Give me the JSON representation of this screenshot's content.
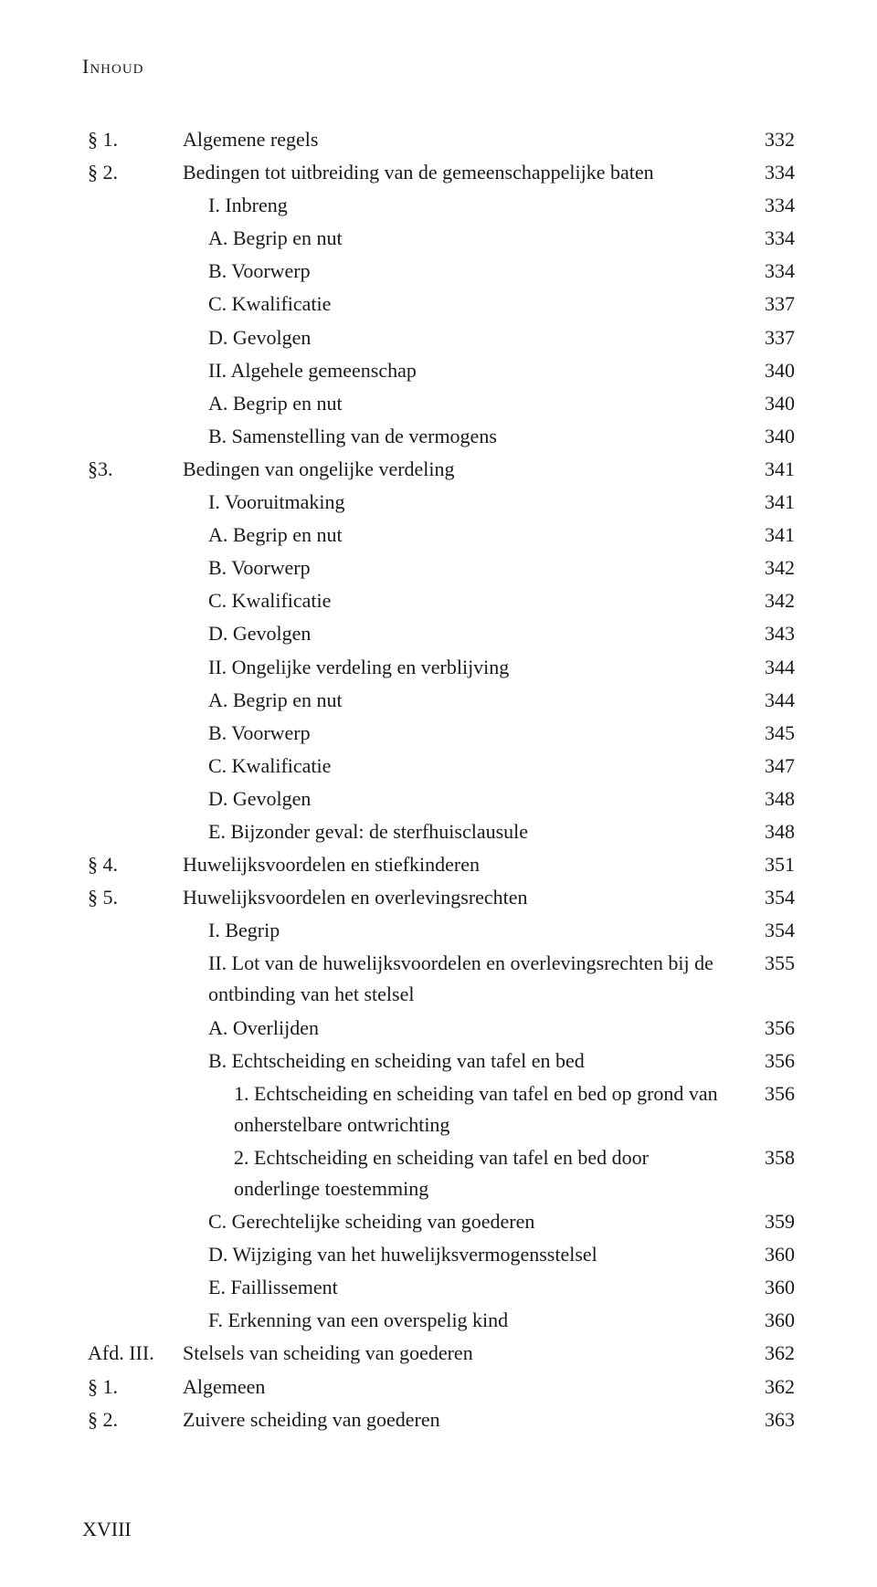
{
  "page_header": "Inhoud",
  "page_number": "XVIII",
  "fonts": {
    "body_family": "Garamond, Times New Roman, serif",
    "body_size_pt": 12,
    "header_smallcaps": true
  },
  "colors": {
    "text": "#1a1a1a",
    "background": "#ffffff"
  },
  "entries": [
    {
      "marker": "§ 1.",
      "indent": 0,
      "text": "Algemene regels",
      "page": "332"
    },
    {
      "marker": "§ 2.",
      "indent": 0,
      "text": "Bedingen tot uitbreiding van de gemeenschappelijke baten",
      "page": "334"
    },
    {
      "marker": "",
      "indent": 1,
      "text": "I.   Inbreng",
      "page": "334"
    },
    {
      "marker": "",
      "indent": 1,
      "text": "A.  Begrip en nut",
      "page": "334"
    },
    {
      "marker": "",
      "indent": 1,
      "text": "B.  Voorwerp",
      "page": "334"
    },
    {
      "marker": "",
      "indent": 1,
      "text": "C.  Kwalificatie",
      "page": "337"
    },
    {
      "marker": "",
      "indent": 1,
      "text": "D.  Gevolgen",
      "page": "337"
    },
    {
      "marker": "",
      "indent": 1,
      "text": "II.  Algehele gemeenschap",
      "page": "340"
    },
    {
      "marker": "",
      "indent": 1,
      "text": "A.  Begrip en nut",
      "page": "340"
    },
    {
      "marker": "",
      "indent": 1,
      "text": "B.  Samenstelling van de vermogens",
      "page": "340"
    },
    {
      "marker": "§3.",
      "indent": 0,
      "text": "Bedingen van ongelijke verdeling",
      "page": "341"
    },
    {
      "marker": "",
      "indent": 1,
      "text": "I.   Vooruitmaking",
      "page": "341"
    },
    {
      "marker": "",
      "indent": 1,
      "text": "A.  Begrip en nut",
      "page": "341"
    },
    {
      "marker": "",
      "indent": 1,
      "text": "B.  Voorwerp",
      "page": "342"
    },
    {
      "marker": "",
      "indent": 1,
      "text": "C.  Kwalificatie",
      "page": "342"
    },
    {
      "marker": "",
      "indent": 1,
      "text": "D.  Gevolgen",
      "page": "343"
    },
    {
      "marker": "",
      "indent": 1,
      "text": "II.  Ongelijke verdeling en verblijving",
      "page": "344"
    },
    {
      "marker": "",
      "indent": 1,
      "text": "A.  Begrip en nut",
      "page": "344"
    },
    {
      "marker": "",
      "indent": 1,
      "text": "B.  Voorwerp",
      "page": "345"
    },
    {
      "marker": "",
      "indent": 1,
      "text": "C.  Kwalificatie",
      "page": "347"
    },
    {
      "marker": "",
      "indent": 1,
      "text": "D.  Gevolgen",
      "page": "348"
    },
    {
      "marker": "",
      "indent": 1,
      "text": "E.  Bijzonder geval: de sterfhuisclausule",
      "page": "348"
    },
    {
      "marker": "§ 4.",
      "indent": 0,
      "text": "Huwelijksvoordelen en stiefkinderen",
      "page": "351"
    },
    {
      "marker": "§ 5.",
      "indent": 0,
      "text": "Huwelijksvoordelen en overlevingsrechten",
      "page": "354"
    },
    {
      "marker": "",
      "indent": 1,
      "text": "I.   Begrip",
      "page": "354"
    },
    {
      "marker": "",
      "indent": 1,
      "text": "II.  Lot van de huwelijksvoordelen en overlevingsrechten bij de ontbinding van het stelsel",
      "page": "355"
    },
    {
      "marker": "",
      "indent": 1,
      "text": "A.  Overlijden",
      "page": "356"
    },
    {
      "marker": "",
      "indent": 1,
      "text": "B.  Echtscheiding en scheiding van tafel en bed",
      "page": "356"
    },
    {
      "marker": "",
      "indent": 2,
      "text": "1.   Echtscheiding en scheiding van tafel en bed op grond van onherstelbare ontwrichting",
      "page": "356"
    },
    {
      "marker": "",
      "indent": 2,
      "text": "2.   Echtscheiding en scheiding van tafel en bed door onderlinge toestemming",
      "page": "358"
    },
    {
      "marker": "",
      "indent": 1,
      "text": "C.  Gerechtelijke scheiding van goederen",
      "page": "359"
    },
    {
      "marker": "",
      "indent": 1,
      "text": "D.  Wijziging van het huwelijksvermogensstelsel",
      "page": "360"
    },
    {
      "marker": "",
      "indent": 1,
      "text": "E.  Faillissement",
      "page": "360"
    },
    {
      "marker": "",
      "indent": 1,
      "text": "F.   Erkenning van een overspelig kind",
      "page": "360"
    },
    {
      "marker": "Afd. III.",
      "indent": 0,
      "text": "Stelsels van scheiding van goederen",
      "page": "362"
    },
    {
      "marker": "§ 1.",
      "indent": 0,
      "text": "Algemeen",
      "page": "362"
    },
    {
      "marker": "§ 2.",
      "indent": 0,
      "text": "Zuivere scheiding van goederen",
      "page": "363"
    }
  ]
}
